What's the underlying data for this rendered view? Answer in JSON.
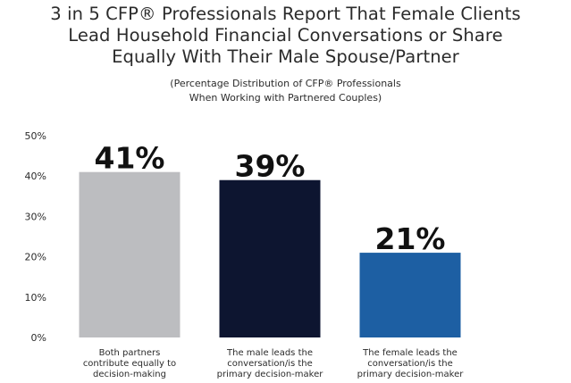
{
  "chart_data": {
    "type": "bar",
    "title_lines": [
      "3 in 5 CFP® Professionals Report That Female Clients",
      "Lead Household Financial Conversations or Share",
      "Equally With Their Male Spouse/Partner"
    ],
    "subtitle_lines": [
      "(Percentage Distribution of CFP® Professionals",
      "When Working with Partnered Couples)"
    ],
    "categories": [
      [
        "Both partners",
        "contribute equally to",
        "decision-making"
      ],
      [
        "The male leads the",
        "conversation/is the",
        "primary decision-maker"
      ],
      [
        "The female leads the",
        "conversation/is the",
        "primary decision-maker"
      ]
    ],
    "values": [
      41,
      39,
      21
    ],
    "data_labels": [
      "41%",
      "39%",
      "21%"
    ],
    "bar_colors": [
      "#bcbdc0",
      "#0d1530",
      "#1d5fa3"
    ],
    "yticks": [
      "0%",
      "10%",
      "20%",
      "30%",
      "40%",
      "50%"
    ],
    "ylim": [
      0,
      50
    ],
    "grid": false,
    "xlabel": "",
    "ylabel": ""
  }
}
